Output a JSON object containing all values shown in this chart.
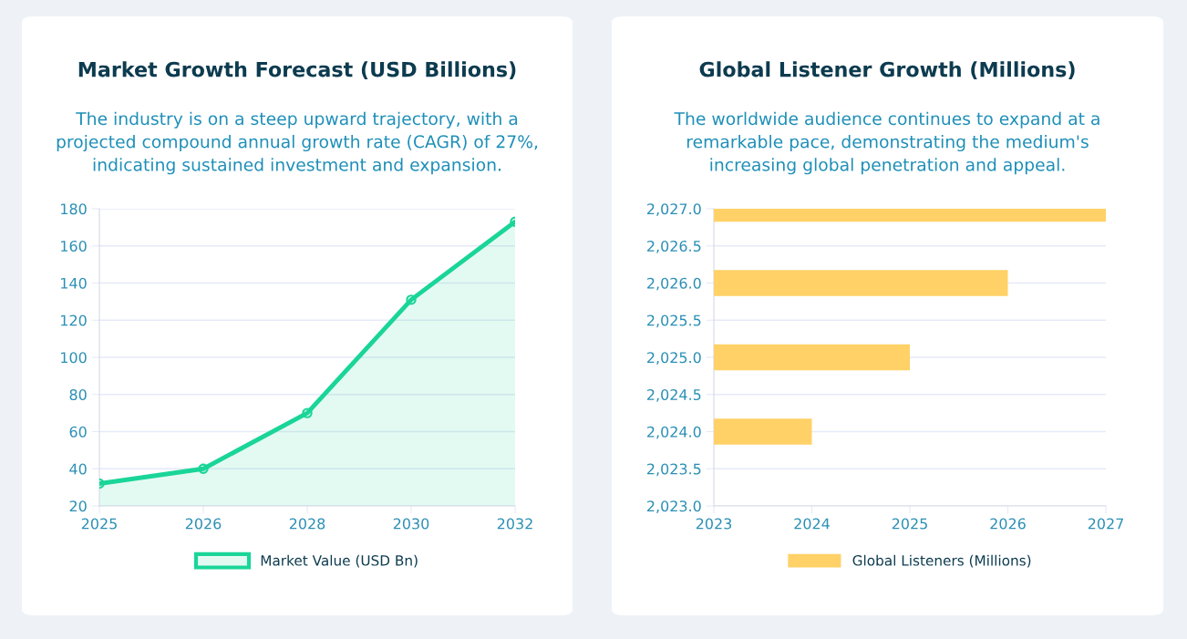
{
  "chart_data": [
    {
      "type": "area",
      "title": "Market Growth Forecast (USD Billions)",
      "subtitle": "The industry is on a steep upward trajectory, with a projected compound annual growth rate (CAGR) of 27%, indicating sustained investment and expansion.",
      "categories": [
        "2025",
        "2026",
        "2028",
        "2030",
        "2032"
      ],
      "series": [
        {
          "name": "Market Value (USD Bn)",
          "color": "#1ad598",
          "values": [
            32,
            40,
            70,
            131,
            173
          ]
        }
      ],
      "ylim": [
        20,
        180
      ],
      "yticks": [
        20,
        40,
        60,
        80,
        100,
        120,
        140,
        160,
        180
      ],
      "grid": "y",
      "legend": "bottom",
      "marker": "circle"
    },
    {
      "type": "bar",
      "orientation": "horizontal",
      "title": "Global Listener Growth (Millions)",
      "subtitle": "The worldwide audience continues to expand at a remarkable pace, demonstrating the medium's increasing global penetration and appeal.",
      "x": [
        2024,
        2025,
        2026,
        2027
      ],
      "series": [
        {
          "name": "Global Listeners (Millions)",
          "color": "#ffd166",
          "values": [
            2024,
            2025,
            2026,
            2027
          ]
        }
      ],
      "xlim": [
        2023,
        2027
      ],
      "xticks": [
        2023,
        2024,
        2025,
        2026,
        2027
      ],
      "ylim": [
        2023,
        2027
      ],
      "yticks": [
        {
          "value": 2023,
          "label": "2,023.0"
        },
        {
          "value": 2023.5,
          "label": "2,023.5"
        },
        {
          "value": 2024,
          "label": "2,024.0"
        },
        {
          "value": 2024.5,
          "label": "2,024.5"
        },
        {
          "value": 2025,
          "label": "2,025.0"
        },
        {
          "value": 2025.5,
          "label": "2,025.5"
        },
        {
          "value": 2026,
          "label": "2,026.0"
        },
        {
          "value": 2026.5,
          "label": "2,026.5"
        },
        {
          "value": 2027,
          "label": "2,027.0"
        }
      ],
      "grid": "y",
      "legend": "bottom"
    }
  ]
}
